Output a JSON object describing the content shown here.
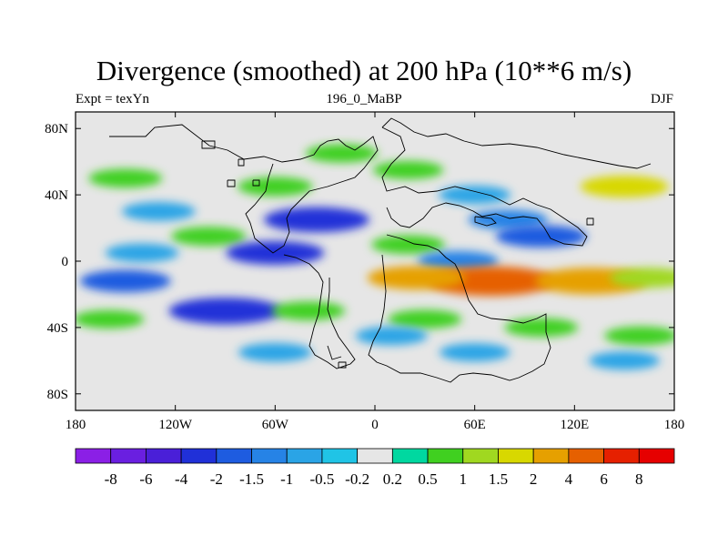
{
  "title": "Divergence (smoothed) at 200 hPa (10**6 m/s)",
  "subtitle_left": "Expt = texYn",
  "subtitle_center": "196_0_MaBP",
  "subtitle_right": "DJF",
  "map": {
    "lon_range": [
      -180,
      180
    ],
    "lat_range": [
      -90,
      90
    ],
    "x_ticks": [
      {
        "value": -180,
        "label": "180"
      },
      {
        "value": -120,
        "label": "120W"
      },
      {
        "value": -60,
        "label": "60W"
      },
      {
        "value": 0,
        "label": "0"
      },
      {
        "value": 60,
        "label": "60E"
      },
      {
        "value": 120,
        "label": "120E"
      },
      {
        "value": 180,
        "label": "180"
      }
    ],
    "y_ticks": [
      {
        "value": 80,
        "label": "80N"
      },
      {
        "value": 40,
        "label": "40N"
      },
      {
        "value": 0,
        "label": "0"
      },
      {
        "value": -40,
        "label": "40S"
      },
      {
        "value": -80,
        "label": "80S"
      }
    ],
    "background_color": "#e6e6e6"
  },
  "colorbar": {
    "labels": [
      "-8",
      "-6",
      "-4",
      "-2",
      "-1.5",
      "-1",
      "-0.5",
      "-0.2",
      "0.2",
      "0.5",
      "1",
      "1.5",
      "2",
      "4",
      "6",
      "8"
    ],
    "colors": [
      "#8b1fe6",
      "#6a1fe0",
      "#4a1fd8",
      "#2030d8",
      "#1e5ce0",
      "#2683e6",
      "#2aa4e6",
      "#20c4e6",
      "#e6e6e6",
      "#00d8a0",
      "#40d020",
      "#a0d820",
      "#d8d800",
      "#e6a000",
      "#e66000",
      "#e62000",
      "#e60000"
    ]
  },
  "chart_data": {
    "type": "heatmap",
    "title": "Divergence (smoothed) at 200 hPa (10**6 m/s)",
    "levels": [
      -8,
      -6,
      -4,
      -2,
      -1.5,
      -1,
      -0.5,
      -0.2,
      0.2,
      0.5,
      1,
      1.5,
      2,
      4,
      6,
      8
    ],
    "x_range": [
      -180,
      180
    ],
    "y_range": [
      -90,
      90
    ],
    "fields": [
      {
        "lon": -150,
        "lat": 50,
        "value": 0.8
      },
      {
        "lon": -60,
        "lat": 45,
        "value": 0.9
      },
      {
        "lon": -20,
        "lat": 65,
        "value": 0.7
      },
      {
        "lon": 20,
        "lat": 55,
        "value": 0.6
      },
      {
        "lon": 150,
        "lat": 45,
        "value": 1.8
      },
      {
        "lon": 60,
        "lat": 40,
        "value": -0.7
      },
      {
        "lon": -35,
        "lat": 25,
        "value": -3.0
      },
      {
        "lon": -130,
        "lat": 30,
        "value": -0.8
      },
      {
        "lon": 80,
        "lat": 25,
        "value": -1.2
      },
      {
        "lon": 100,
        "lat": 15,
        "value": -2.0
      },
      {
        "lon": -100,
        "lat": 15,
        "value": 0.9
      },
      {
        "lon": 20,
        "lat": 10,
        "value": 0.8
      },
      {
        "lon": -60,
        "lat": 5,
        "value": -2.5
      },
      {
        "lon": -140,
        "lat": 5,
        "value": -0.8
      },
      {
        "lon": 50,
        "lat": 0,
        "value": -1.3
      },
      {
        "lon": 70,
        "lat": -12,
        "value": 4.5
      },
      {
        "lon": 25,
        "lat": -10,
        "value": 2.5
      },
      {
        "lon": 130,
        "lat": -12,
        "value": 3.5
      },
      {
        "lon": 165,
        "lat": -10,
        "value": 1.2
      },
      {
        "lon": -150,
        "lat": -12,
        "value": -2.0
      },
      {
        "lon": -90,
        "lat": -30,
        "value": -3.5
      },
      {
        "lon": -160,
        "lat": -35,
        "value": 0.6
      },
      {
        "lon": -40,
        "lat": -30,
        "value": 0.8
      },
      {
        "lon": 30,
        "lat": -35,
        "value": 0.8
      },
      {
        "lon": 100,
        "lat": -40,
        "value": 0.8
      },
      {
        "lon": 160,
        "lat": -45,
        "value": 0.8
      },
      {
        "lon": 10,
        "lat": -45,
        "value": -0.7
      },
      {
        "lon": -60,
        "lat": -55,
        "value": -0.8
      },
      {
        "lon": 60,
        "lat": -55,
        "value": -0.6
      },
      {
        "lon": 150,
        "lat": -60,
        "value": -0.6
      }
    ]
  }
}
